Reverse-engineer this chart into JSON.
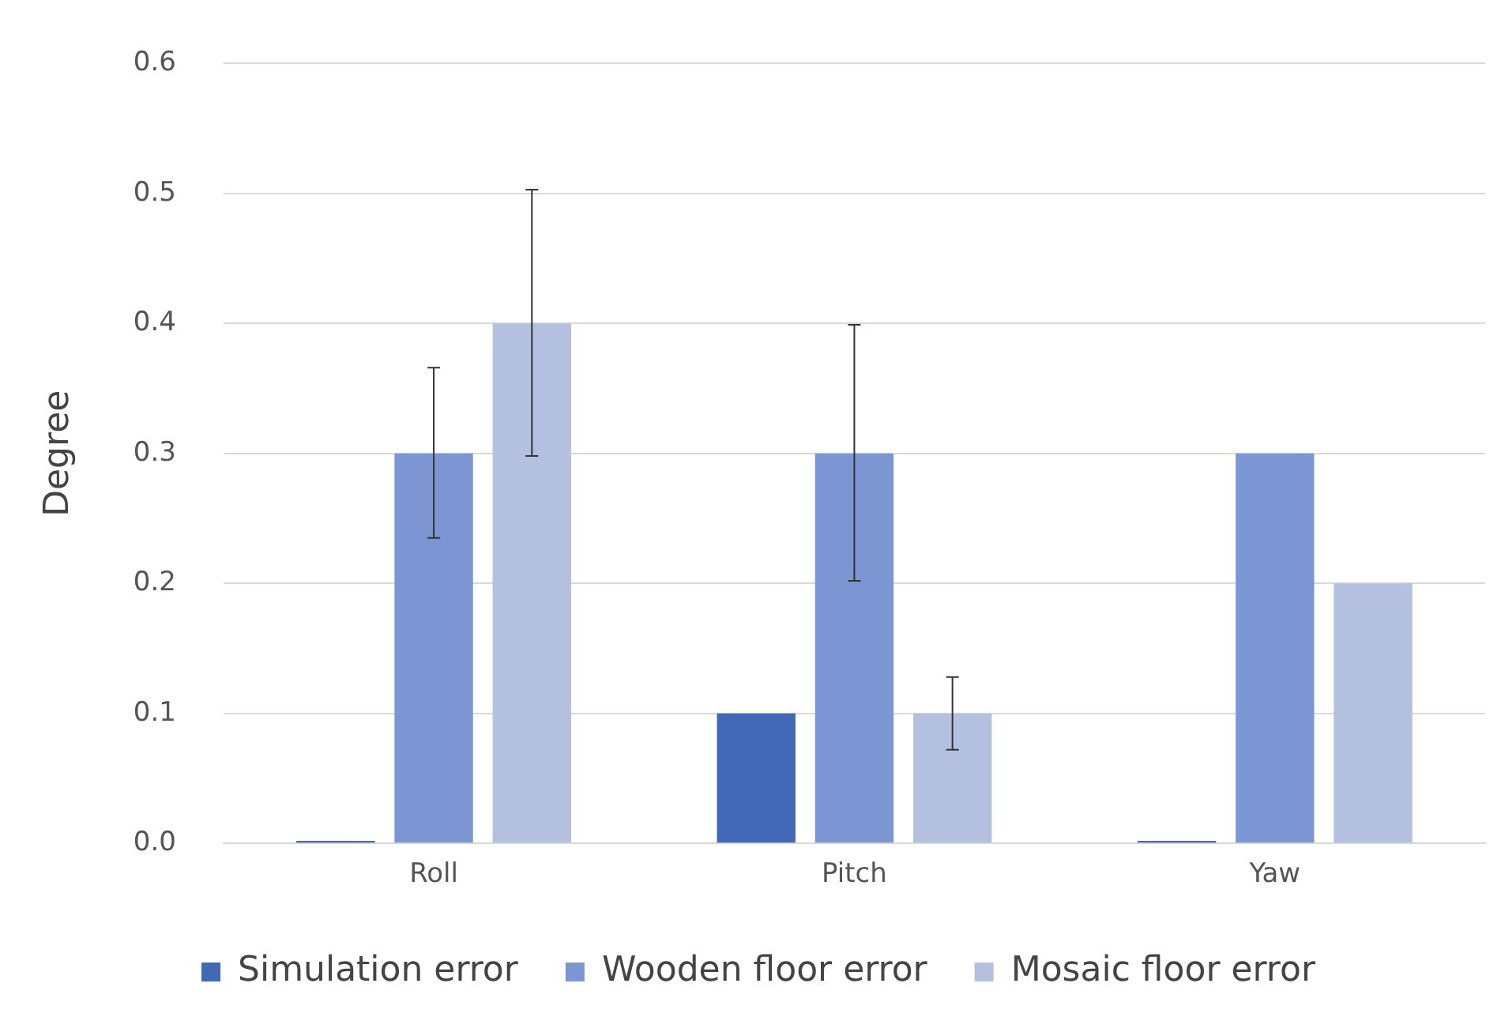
{
  "chart_data": {
    "type": "bar",
    "ylabel": "Degree",
    "categories": [
      "Roll",
      "Pitch",
      "Yaw"
    ],
    "series": [
      {
        "name": "Simulation error",
        "color": "#4169b7",
        "values": [
          0.002,
          0.1,
          0.002
        ]
      },
      {
        "name": "Wooden floor error",
        "color": "#7b96d2",
        "values": [
          0.3,
          0.3,
          0.3
        ],
        "errors": [
          [
            0.235,
            0.366
          ],
          [
            0.202,
            0.399
          ],
          null
        ]
      },
      {
        "name": "Mosaic floor error",
        "color": "#b4c0e0",
        "values": [
          0.4,
          0.1,
          0.2
        ],
        "errors": [
          [
            0.298,
            0.503
          ],
          [
            0.072,
            0.128
          ],
          null
        ]
      }
    ],
    "ylim": [
      0,
      0.6
    ],
    "yticks": [
      {
        "value": 0,
        "label": "0.0"
      },
      {
        "value": 0.1,
        "label": "0.1"
      },
      {
        "value": 0.2,
        "label": "0.2"
      },
      {
        "value": 0.3,
        "label": "0.3"
      },
      {
        "value": 0.4,
        "label": "0.4"
      },
      {
        "value": 0.5,
        "label": "0.5"
      },
      {
        "value": 0.6,
        "label": "0.6"
      }
    ],
    "grid": "y",
    "legend": "bottom"
  }
}
